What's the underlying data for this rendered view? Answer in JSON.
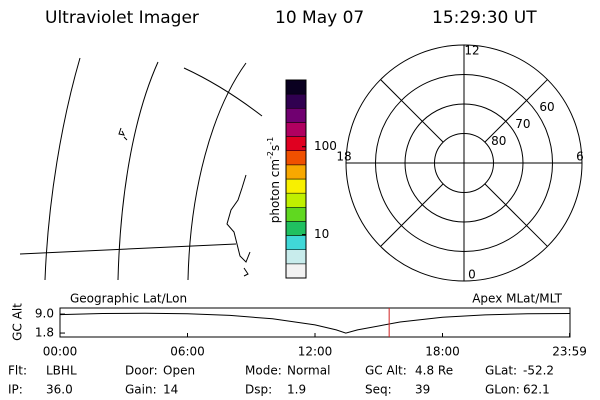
{
  "header": {
    "title": "Ultraviolet Imager",
    "date": "10 May 07",
    "time": "15:29:30 UT"
  },
  "colorbar": {
    "label": [
      "photon cm",
      "-2",
      "s",
      "-1"
    ],
    "zlim": [
      3.2,
      575
    ],
    "log": true,
    "ticks": [
      10,
      100
    ],
    "colors": [
      "#f2f2f2",
      "#c8ecec",
      "#40d8d8",
      "#20c060",
      "#60d820",
      "#c0f000",
      "#f8f000",
      "#f8a800",
      "#f05000",
      "#e00020",
      "#b00060",
      "#700070",
      "#300050",
      "#0a0020"
    ]
  },
  "polar": {
    "rlim": [
      90,
      50
    ],
    "rticks": [
      80,
      70,
      60
    ],
    "angle_ticks": [
      12,
      6,
      0,
      18
    ]
  },
  "chart_data": {
    "type": "line",
    "y_label": "GC Alt",
    "left_label": "Geographic Lat/Lon",
    "right_label": "Apex MLat/MLT",
    "x": [
      0,
      2,
      4,
      6,
      8,
      10,
      12,
      13,
      13.45,
      14,
      16,
      18,
      20,
      22,
      24
    ],
    "values": [
      8.8,
      9.2,
      9.3,
      9.1,
      8.5,
      7.2,
      4.9,
      3.0,
      1.8,
      3.0,
      6.0,
      7.8,
      8.7,
      9.1,
      9.2
    ],
    "color": "#000000",
    "xlim": [
      0,
      24
    ],
    "xticks": [
      {
        "value": 0,
        "label": "00:00"
      },
      {
        "value": 6,
        "label": "06:00"
      },
      {
        "value": 12,
        "label": "12:00"
      },
      {
        "value": 18,
        "label": "18:00"
      },
      {
        "value": 23.98,
        "label": "23:59"
      }
    ],
    "ylim": [
      0.3,
      11.3
    ],
    "yticks": [
      {
        "value": 9.0,
        "label": "9.0"
      },
      {
        "value": 1.8,
        "label": "1.8"
      }
    ],
    "marker_x": 15.49,
    "marker_color": "#d02020"
  },
  "footer": [
    [
      {
        "label": "Flt:",
        "value": "LBHL"
      },
      {
        "label": "IP:",
        "value": "36.0"
      }
    ],
    [
      {
        "label": "Door:",
        "value": "Open"
      },
      {
        "label": "Gain:",
        "value": "14"
      }
    ],
    [
      {
        "label": "Mode:",
        "value": "Normal"
      },
      {
        "label": "Dsp:",
        "value": "1.9"
      }
    ],
    [
      {
        "label": "GC Alt:",
        "value": "4.8 Re"
      },
      {
        "label": "Seq:",
        "value": "39"
      }
    ],
    [
      {
        "label": "GLat:",
        "value": "-52.2"
      },
      {
        "label": "GLon:",
        "value": "62.1"
      }
    ]
  ]
}
